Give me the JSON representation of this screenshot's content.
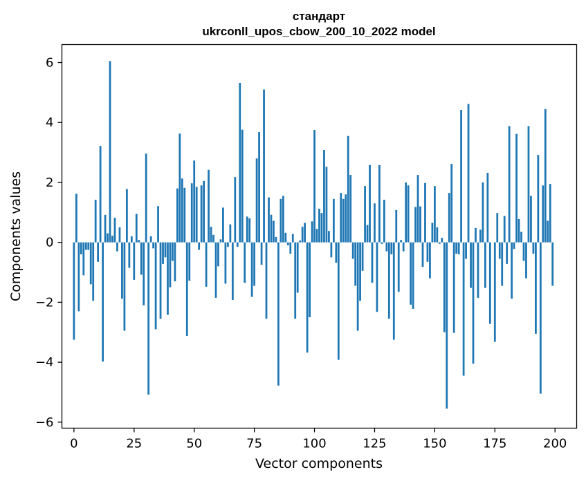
{
  "chart_data": {
    "type": "bar",
    "title": [
      "стандарт",
      "ukrconll_upos_cbow_200_10_2022 model"
    ],
    "xlabel": "Vector components",
    "ylabel": "Components values",
    "xlim": [
      -5,
      209
    ],
    "ylim": [
      -6.2,
      6.6
    ],
    "xticks": [
      0,
      25,
      50,
      75,
      100,
      125,
      150,
      175,
      200
    ],
    "yticks": [
      -6,
      -4,
      -2,
      0,
      2,
      4,
      6
    ],
    "bar_color": "#1f77b4",
    "x": [
      0,
      1,
      2,
      3,
      4,
      5,
      6,
      7,
      8,
      9,
      10,
      11,
      12,
      13,
      14,
      15,
      16,
      17,
      18,
      19,
      20,
      21,
      22,
      23,
      24,
      25,
      26,
      27,
      28,
      29,
      30,
      31,
      32,
      33,
      34,
      35,
      36,
      37,
      38,
      39,
      40,
      41,
      42,
      43,
      44,
      45,
      46,
      47,
      48,
      49,
      50,
      51,
      52,
      53,
      54,
      55,
      56,
      57,
      58,
      59,
      60,
      61,
      62,
      63,
      64,
      65,
      66,
      67,
      68,
      69,
      70,
      71,
      72,
      73,
      74,
      75,
      76,
      77,
      78,
      79,
      80,
      81,
      82,
      83,
      84,
      85,
      86,
      87,
      88,
      89,
      90,
      91,
      92,
      93,
      94,
      95,
      96,
      97,
      98,
      99,
      100,
      101,
      102,
      103,
      104,
      105,
      106,
      107,
      108,
      109,
      110,
      111,
      112,
      113,
      114,
      115,
      116,
      117,
      118,
      119,
      120,
      121,
      122,
      123,
      124,
      125,
      126,
      127,
      128,
      129,
      130,
      131,
      132,
      133,
      134,
      135,
      136,
      137,
      138,
      139,
      140,
      141,
      142,
      143,
      144,
      145,
      146,
      147,
      148,
      149,
      150,
      151,
      152,
      153,
      154,
      155,
      156,
      157,
      158,
      159,
      160,
      161,
      162,
      163,
      164,
      165,
      166,
      167,
      168,
      169,
      170,
      171,
      172,
      173,
      174,
      175,
      176,
      177,
      178,
      179,
      180,
      181,
      182,
      183,
      184,
      185,
      186,
      187,
      188,
      189,
      190,
      191,
      192,
      193,
      194,
      195,
      196,
      197,
      198,
      199
    ],
    "values": [
      -3.25,
      1.62,
      -2.3,
      -0.4,
      -1.1,
      -0.25,
      -0.25,
      -1.4,
      -1.95,
      1.42,
      -0.65,
      3.22,
      -3.98,
      0.92,
      0.3,
      6.05,
      0.22,
      0.82,
      -0.3,
      0.5,
      -1.88,
      -2.95,
      1.78,
      -0.85,
      0.2,
      -1.25,
      0.95,
      0.08,
      -1.08,
      -2.1,
      2.96,
      -5.08,
      0.2,
      -0.2,
      -2.9,
      1.21,
      -2.55,
      -0.72,
      -0.5,
      -2.42,
      -1.5,
      -0.62,
      -1.3,
      1.8,
      3.63,
      2.13,
      1.82,
      -3.12,
      -1.28,
      1.97,
      2.73,
      1.85,
      -0.25,
      1.9,
      2.05,
      -1.48,
      2.42,
      0.52,
      0.25,
      -1.85,
      -0.8,
      0.1,
      1.16,
      -1.38,
      -0.15,
      0.6,
      -1.92,
      2.18,
      -0.15,
      5.32,
      3.76,
      -1.35,
      0.86,
      0.8,
      -1.82,
      -1.45,
      2.8,
      3.68,
      -0.75,
      5.1,
      -2.55,
      1.5,
      0.92,
      0.72,
      0.18,
      -4.78,
      1.45,
      1.55,
      0.32,
      -0.1,
      -0.38,
      0.28,
      -2.55,
      -1.68,
      0.06,
      0.52,
      0.65,
      -3.68,
      -2.5,
      0.7,
      3.75,
      0.45,
      1.12,
      0.98,
      3.08,
      2.52,
      0.38,
      -0.5,
      1.45,
      -0.68,
      -3.92,
      1.65,
      1.45,
      1.6,
      3.55,
      2.25,
      -0.55,
      -1.45,
      -2.95,
      -1.95,
      -0.95,
      1.88,
      0.58,
      2.58,
      -1.35,
      1.3,
      -2.32,
      2.58,
      -0.05,
      1.42,
      -0.3,
      -2.55,
      -0.4,
      -3.25,
      1.08,
      -1.65,
      0.08,
      -0.3,
      2.0,
      1.9,
      -2.08,
      -2.22,
      1.18,
      2.25,
      1.2,
      -0.82,
      1.98,
      -0.65,
      -1.2,
      0.65,
      1.88,
      0.5,
      -0.05,
      0.15,
      -3.0,
      -5.55,
      1.65,
      2.62,
      -3.02,
      -0.38,
      -0.4,
      4.42,
      -4.45,
      -0.55,
      4.62,
      -1.52,
      -4.05,
      0.48,
      -1.85,
      0.42,
      2.0,
      -1.52,
      2.32,
      -2.72,
      0.0,
      -3.32,
      0.98,
      -0.55,
      -1.45,
      0.88,
      -0.72,
      3.88,
      -1.88,
      -0.22,
      3.62,
      0.78,
      0.35,
      -0.62,
      -1.2,
      3.88,
      1.55,
      -0.38,
      -3.05,
      2.92,
      -5.05,
      1.9,
      4.45,
      0.72,
      1.95,
      -1.45
    ]
  }
}
